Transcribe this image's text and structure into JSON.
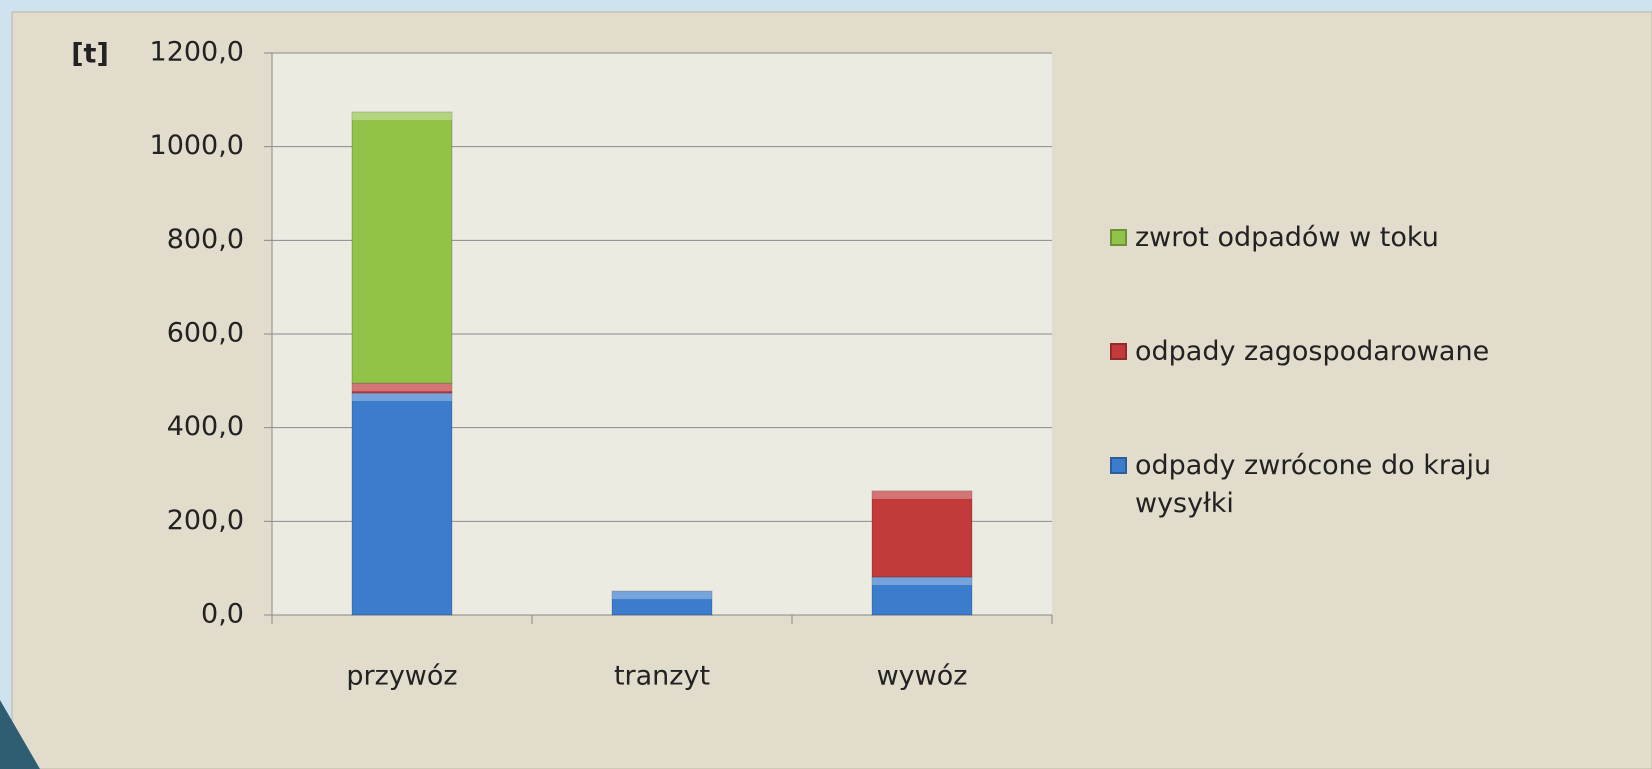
{
  "chart_data": {
    "type": "stacked-bar",
    "ylabel": "[t]",
    "categories": [
      "przywóz",
      "tranzyt",
      "wywóz"
    ],
    "series": [
      {
        "name": "odpady zwrócone do kraju wysyłki",
        "color": "#3c7ccc",
        "values": [
          474,
          51,
          81
        ]
      },
      {
        "name": "odpady zagospodarowane",
        "color": "#c23a3a",
        "values": [
          21,
          0,
          184
        ]
      },
      {
        "name": "zwrot odpadów w toku",
        "color": "#92c348",
        "values": [
          579,
          0,
          0
        ]
      }
    ],
    "ylim": [
      0,
      1200
    ],
    "yticks": [
      {
        "value": 0,
        "label": "0,0"
      },
      {
        "value": 200,
        "label": "200,0"
      },
      {
        "value": 400,
        "label": "400,0"
      },
      {
        "value": 600,
        "label": "600,0"
      },
      {
        "value": 800,
        "label": "800,0"
      },
      {
        "value": 1000,
        "label": "1000,0"
      },
      {
        "value": 1200,
        "label": "1200,0"
      }
    ],
    "grid": true,
    "legend": "right"
  }
}
